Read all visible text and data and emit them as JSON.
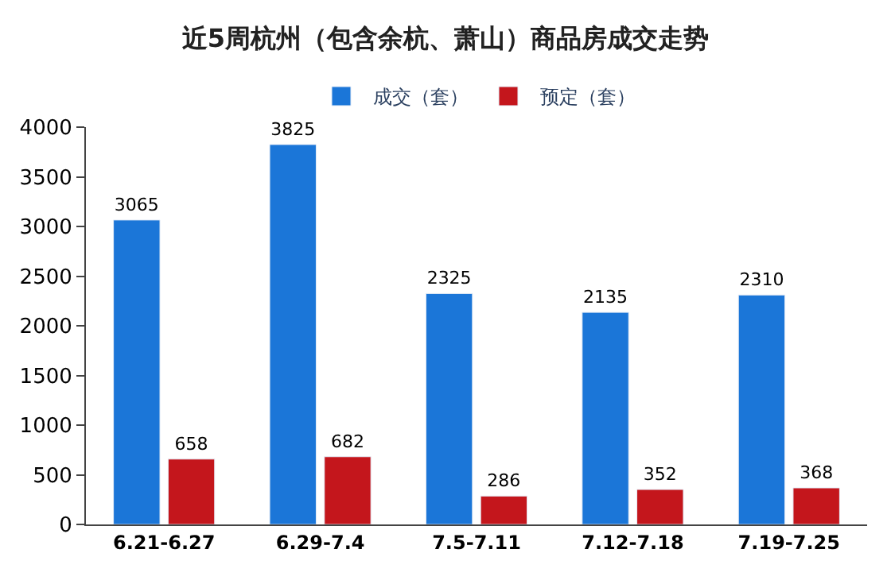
{
  "chart_data": {
    "type": "bar",
    "title": "近5周杭州（包含余杭、萧山）商品房成交走势",
    "categories": [
      "6.21-6.27",
      "6.29-7.4",
      "7.5-7.11",
      "7.12-7.18",
      "7.19-7.25"
    ],
    "series": [
      {
        "name": "成交（套）",
        "color": "#1b76d8",
        "values": [
          3065,
          3825,
          2325,
          2135,
          2310
        ]
      },
      {
        "name": "预定（套）",
        "color": "#c4161c",
        "values": [
          658,
          682,
          286,
          352,
          368
        ]
      }
    ],
    "ylim": [
      0,
      4000
    ],
    "yticks": [
      0,
      500,
      1000,
      1500,
      2000,
      2500,
      3000,
      3500,
      4000
    ],
    "legend": "top",
    "data_labels": true
  }
}
